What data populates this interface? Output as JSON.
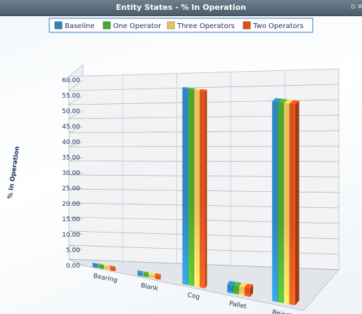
{
  "window": {
    "title": "Entity States - % In Operation",
    "restore_icon": "restore-icon",
    "close_icon": "close-icon"
  },
  "chart_data": {
    "type": "bar",
    "title": "Entity States - % In Operation",
    "ylabel": "% In Operation",
    "xlabel": "",
    "ylim": [
      0,
      60
    ],
    "yticks": [
      "0.00",
      "5.00",
      "10.00",
      "15.00",
      "20.00",
      "25.00",
      "30.00",
      "35.00",
      "40.00",
      "45.00",
      "50.00",
      "55.00",
      "60.00"
    ],
    "categories": [
      "Bearing",
      "Blank",
      "Cog",
      "Pallet",
      "Reject"
    ],
    "series": [
      {
        "name": "Baseline",
        "color": "#2e86c1",
        "values": [
          1.2,
          1.1,
          62.5,
          2.6,
          62.5
        ]
      },
      {
        "name": "One Operator",
        "color": "#4aa832",
        "values": [
          1.2,
          1.1,
          62.5,
          2.6,
          62.5
        ]
      },
      {
        "name": "Three Operators",
        "color": "#e8c25a",
        "values": [
          1.2,
          1.1,
          62.5,
          2.6,
          62.5
        ]
      },
      {
        "name": "Two Operators",
        "color": "#e0501a",
        "values": [
          1.2,
          1.1,
          62.5,
          2.6,
          62.5
        ]
      }
    ],
    "grid": true,
    "legend_position": "top-center",
    "style": "3d"
  }
}
